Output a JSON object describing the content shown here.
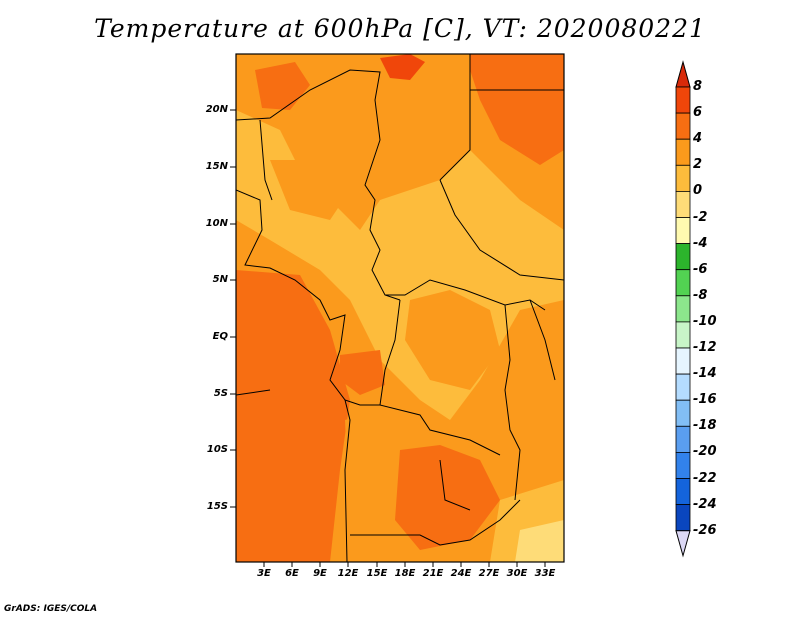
{
  "title": "Temperature at 600hPa [C], VT: 2020080221",
  "credit": "GrADS: IGES/COLA",
  "lat_labels": [
    "20N",
    "15N",
    "10N",
    "5N",
    "EQ",
    "5S",
    "10S",
    "15S"
  ],
  "lon_labels": [
    "3E",
    "6E",
    "9E",
    "12E",
    "15E",
    "18E",
    "21E",
    "24E",
    "27E",
    "30E",
    "33E"
  ],
  "colorbar": {
    "labels": [
      "8",
      "6",
      "4",
      "2",
      "0",
      "-2",
      "-4",
      "-6",
      "-8",
      "-10",
      "-12",
      "-14",
      "-16",
      "-18",
      "-20",
      "-22",
      "-24",
      "-26"
    ],
    "colors": [
      "#d82a0a",
      "#f0460a",
      "#f76e12",
      "#fb9a1c",
      "#fdbc3c",
      "#fedc78",
      "#fffab0",
      "#2cb42c",
      "#52d252",
      "#8ce68c",
      "#c8f5c8",
      "#e6f5ff",
      "#b4dcff",
      "#82bef5",
      "#5a9ef0",
      "#3282eb",
      "#1464dc",
      "#0a46be",
      "#001e82",
      "#000050"
    ],
    "arrow_top_color": "#d82a0a",
    "arrow_bottom_color": "#dcd8f5"
  },
  "map": {
    "lon_range": [
      0,
      35
    ],
    "lat_range": [
      -20,
      24
    ],
    "base_color": "#fb9a1c",
    "projection": "latlon"
  }
}
